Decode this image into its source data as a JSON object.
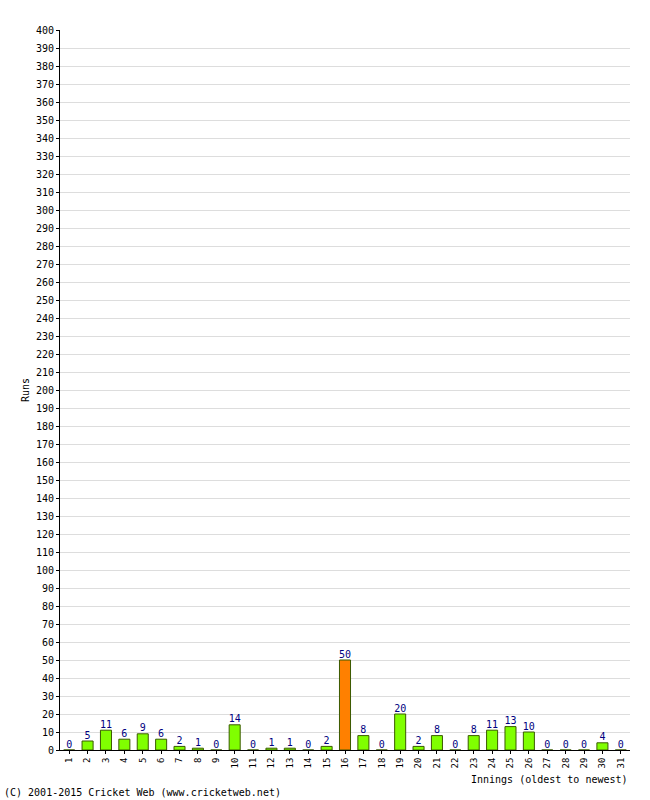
{
  "chart_data": {
    "type": "bar",
    "xlabel": "Innings (oldest to newest)",
    "ylabel": "Runs",
    "categories": [
      "1",
      "2",
      "3",
      "4",
      "5",
      "6",
      "7",
      "8",
      "9",
      "10",
      "11",
      "12",
      "13",
      "14",
      "15",
      "16",
      "17",
      "18",
      "19",
      "20",
      "21",
      "22",
      "23",
      "24",
      "25",
      "26",
      "27",
      "28",
      "29",
      "30",
      "31"
    ],
    "values": [
      0,
      5,
      11,
      6,
      9,
      6,
      2,
      1,
      0,
      14,
      0,
      1,
      1,
      0,
      2,
      50,
      8,
      0,
      20,
      2,
      8,
      0,
      8,
      11,
      13,
      10,
      0,
      0,
      0,
      4,
      0
    ],
    "colors": [
      "#80ff00",
      "#80ff00",
      "#80ff00",
      "#80ff00",
      "#80ff00",
      "#80ff00",
      "#80ff00",
      "#80ff00",
      "#80ff00",
      "#80ff00",
      "#80ff00",
      "#80ff00",
      "#80ff00",
      "#80ff00",
      "#80ff00",
      "#ff8000",
      "#80ff00",
      "#80ff00",
      "#80ff00",
      "#80ff00",
      "#80ff00",
      "#80ff00",
      "#80ff00",
      "#80ff00",
      "#80ff00",
      "#80ff00",
      "#80ff00",
      "#80ff00",
      "#80ff00",
      "#80ff00",
      "#80ff00"
    ],
    "ylim": [
      0,
      400
    ],
    "yticks": [
      0,
      10,
      20,
      30,
      40,
      50,
      60,
      70,
      80,
      90,
      100,
      110,
      120,
      130,
      140,
      150,
      160,
      170,
      180,
      190,
      200,
      210,
      220,
      230,
      240,
      250,
      260,
      270,
      280,
      290,
      300,
      310,
      320,
      330,
      340,
      350,
      360,
      370,
      380,
      390,
      400
    ],
    "grid": true,
    "data_labels": true,
    "annotations": [
      "(C) 2001-2015 Cricket Web (www.cricketweb.net)"
    ]
  }
}
